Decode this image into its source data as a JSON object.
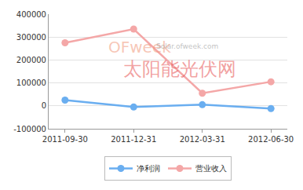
{
  "chart_data": {
    "type": "line",
    "categories": [
      "2011-09-30",
      "2011-12-31",
      "2012-03-31",
      "2012-06-30"
    ],
    "series": [
      {
        "name": "净利润",
        "color": "#6aaef0",
        "values": [
          25000,
          -5000,
          5000,
          -12000
        ],
        "marker": "circle"
      },
      {
        "name": "营业收入",
        "color": "#f4a7a7",
        "values": [
          275000,
          335000,
          55000,
          105000
        ],
        "marker": "circle"
      }
    ],
    "ylim": [
      -100000,
      400000
    ],
    "yticks": [
      -100000,
      0,
      100000,
      200000,
      300000,
      400000
    ],
    "grid": true,
    "legend": "bottom",
    "annotations": [
      "OFweek",
      "Solar.ofweek.com",
      "太阳能光伏网"
    ]
  }
}
